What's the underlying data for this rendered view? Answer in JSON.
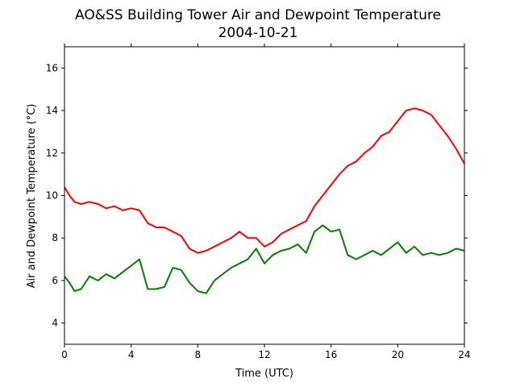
{
  "chart_data": {
    "type": "line",
    "title": "AO&SS Building Tower Air and Dewpoint Temperature",
    "subtitle": "2004-10-21",
    "xlabel": "Time (UTC)",
    "ylabel": "Air and Dewpoint Temperature (°C)",
    "xlim": [
      0,
      24
    ],
    "ylim": [
      3,
      17
    ],
    "xticks": [
      0,
      4,
      8,
      12,
      16,
      20,
      24
    ],
    "yticks": [
      4,
      6,
      8,
      10,
      12,
      14,
      16
    ],
    "grid": false,
    "series": [
      {
        "color": "#ff0000",
        "x": [
          0,
          0.3,
          0.6,
          1.0,
          1.5,
          2.0,
          2.5,
          3.0,
          3.5,
          4.0,
          4.5,
          5.0,
          5.5,
          6.0,
          6.5,
          7.0,
          7.5,
          8.0,
          8.5,
          9.0,
          9.5,
          10.0,
          10.5,
          11.0,
          11.5,
          12.0,
          12.5,
          13.0,
          13.5,
          14.0,
          14.5,
          15.0,
          15.5,
          16.0,
          16.5,
          17.0,
          17.5,
          18.0,
          18.5,
          19.0,
          19.5,
          20.0,
          20.5,
          21.0,
          21.5,
          22.0,
          22.5,
          23.0,
          23.5,
          24.0
        ],
        "values": [
          10.4,
          10.0,
          9.7,
          9.6,
          9.7,
          9.6,
          9.4,
          9.5,
          9.3,
          9.4,
          9.3,
          8.7,
          8.5,
          8.5,
          8.3,
          8.1,
          7.5,
          7.3,
          7.4,
          7.6,
          7.8,
          8.0,
          8.3,
          8.0,
          8.0,
          7.6,
          7.8,
          8.2,
          8.4,
          8.6,
          8.8,
          9.5,
          10.0,
          10.5,
          11.0,
          11.4,
          11.6,
          12.0,
          12.3,
          12.8,
          13.0,
          13.5,
          14.0,
          14.1,
          14.0,
          13.8,
          13.3,
          12.8,
          12.2,
          11.5
        ]
      },
      {
        "color": "#008000",
        "x": [
          0,
          0.3,
          0.6,
          1.0,
          1.5,
          2.0,
          2.5,
          3.0,
          3.5,
          4.0,
          4.5,
          5.0,
          5.5,
          6.0,
          6.5,
          7.0,
          7.5,
          8.0,
          8.5,
          9.0,
          9.5,
          10.0,
          10.5,
          11.0,
          11.5,
          12.0,
          12.5,
          13.0,
          13.5,
          14.0,
          14.5,
          15.0,
          15.5,
          16.0,
          16.5,
          17.0,
          17.5,
          18.0,
          18.5,
          19.0,
          19.5,
          20.0,
          20.5,
          21.0,
          21.5,
          22.0,
          22.5,
          23.0,
          23.5,
          24.0
        ],
        "values": [
          6.2,
          5.9,
          5.5,
          5.6,
          6.2,
          6.0,
          6.3,
          6.1,
          6.4,
          6.7,
          7.0,
          5.6,
          5.6,
          5.7,
          6.6,
          6.5,
          5.9,
          5.5,
          5.4,
          6.0,
          6.3,
          6.6,
          6.8,
          7.0,
          7.5,
          6.8,
          7.2,
          7.4,
          7.5,
          7.7,
          7.3,
          8.3,
          8.6,
          8.3,
          8.4,
          7.2,
          7.0,
          7.2,
          7.4,
          7.2,
          7.5,
          7.8,
          7.3,
          7.6,
          7.2,
          7.3,
          7.2,
          7.3,
          7.5,
          7.4
        ]
      }
    ]
  }
}
